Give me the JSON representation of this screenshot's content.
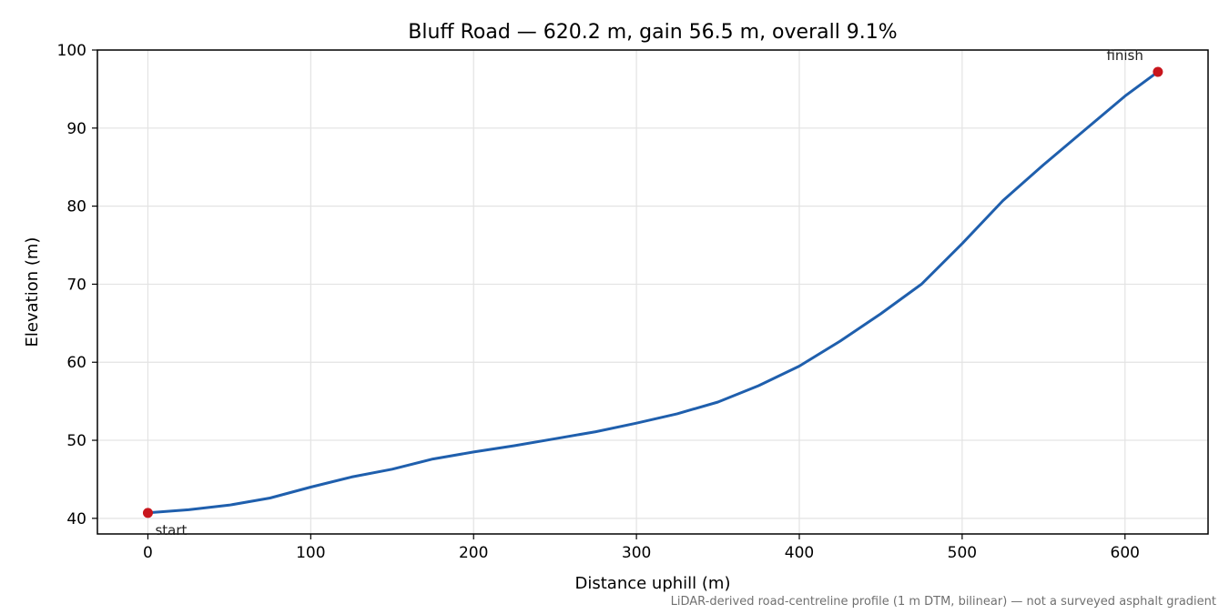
{
  "chart_data": {
    "type": "line",
    "title": "Bluff Road — 620.2 m, gain 56.5 m, overall 9.1%",
    "xlabel": "Distance uphill (m)",
    "ylabel": "Elevation (m)",
    "xlim": [
      -31,
      651
    ],
    "ylim": [
      38,
      100
    ],
    "xticks": [
      0,
      100,
      200,
      300,
      400,
      500,
      600
    ],
    "yticks": [
      40,
      50,
      60,
      70,
      80,
      90,
      100
    ],
    "grid": true,
    "line_color": "#1f5fad",
    "marker_color": "#c8161d",
    "series": [
      {
        "x": [
          0,
          25,
          50,
          75,
          100,
          125,
          150,
          175,
          200,
          225,
          250,
          275,
          300,
          325,
          350,
          375,
          400,
          425,
          450,
          475,
          500,
          525,
          550,
          575,
          600,
          620.2
        ],
        "y": [
          40.7,
          41.1,
          41.7,
          42.6,
          44.0,
          45.3,
          46.3,
          47.6,
          48.5,
          49.3,
          50.2,
          51.1,
          52.2,
          53.4,
          54.9,
          57.0,
          59.5,
          62.7,
          66.2,
          70.0,
          75.2,
          80.7,
          85.3,
          89.7,
          94.1,
          97.2
        ]
      }
    ],
    "annotations": [
      {
        "label": "start",
        "x": 0,
        "y": 40.7
      },
      {
        "label": "finish",
        "x": 620.2,
        "y": 97.2
      }
    ],
    "footnote": "LiDAR-derived road-centreline profile (1 m DTM, bilinear) — not a surveyed asphalt gradient"
  }
}
